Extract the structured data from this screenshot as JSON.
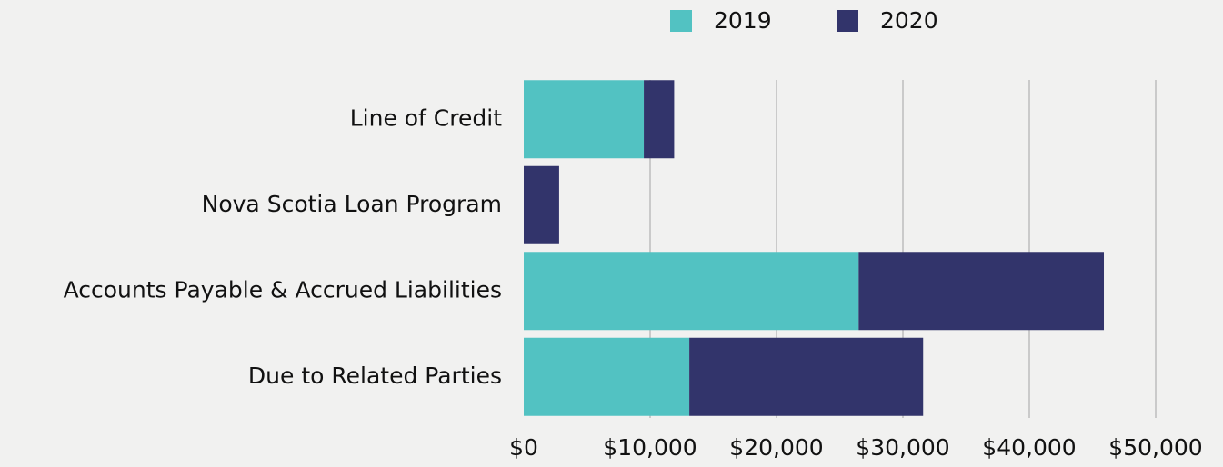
{
  "chart_data": {
    "type": "stacked-bar-horizontal",
    "categories": [
      "Line of Credit",
      "Nova Scotia Loan Program",
      "Accounts Payable & Accrued Liabilities",
      "Due to Related Parties"
    ],
    "series": [
      {
        "name": "2019",
        "color": "#52c2c2",
        "values": [
          9500,
          0,
          26500,
          13100
        ]
      },
      {
        "name": "2020",
        "color": "#32346b",
        "values": [
          2400,
          2800,
          19400,
          18500
        ]
      }
    ],
    "xlim": [
      0,
      50000
    ],
    "xticks": [
      {
        "value": 0,
        "label": "$0"
      },
      {
        "value": 10000,
        "label": "$10,000"
      },
      {
        "value": 20000,
        "label": "$20,000"
      },
      {
        "value": 30000,
        "label": "$30,000"
      },
      {
        "value": 40000,
        "label": "$40,000"
      },
      {
        "value": 50000,
        "label": "$50,000"
      }
    ],
    "grid": true,
    "legend": "top"
  }
}
